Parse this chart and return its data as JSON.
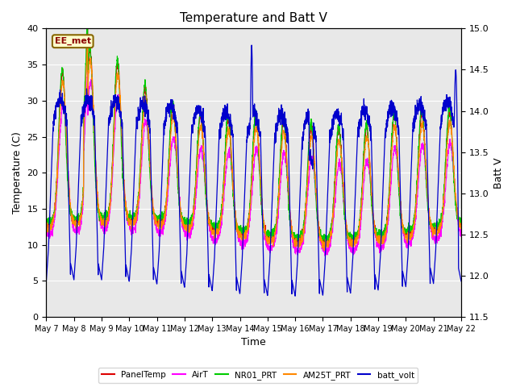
{
  "title": "Temperature and Batt V",
  "xlabel": "Time",
  "ylabel_left": "Temperature (C)",
  "ylabel_right": "Batt V",
  "annotation": "EE_met",
  "ylim_left": [
    0,
    40
  ],
  "ylim_right": [
    11.5,
    15.0
  ],
  "n_days": 15,
  "n_points": 3000,
  "background_color": "#ffffff",
  "plot_bg_color": "#e8e8e8",
  "series": {
    "PanelTemp": {
      "color": "#dd0000",
      "lw": 0.8
    },
    "AirT": {
      "color": "#ff00ff",
      "lw": 0.8
    },
    "NR01_PRT": {
      "color": "#00cc00",
      "lw": 0.8
    },
    "AM25T_PRT": {
      "color": "#ff8800",
      "lw": 0.8
    },
    "batt_volt": {
      "color": "#0000cc",
      "lw": 0.9
    }
  },
  "xtick_labels": [
    "May 7",
    "May 8",
    "May 9",
    "May 10",
    "May 11",
    "May 12",
    "May 13",
    "May 14",
    "May 15",
    "May 16",
    "May 17",
    "May 18",
    "May 19",
    "May 20",
    "May 21",
    "May 22"
  ],
  "yticks_left": [
    0,
    5,
    10,
    15,
    20,
    25,
    30,
    35,
    40
  ],
  "yticks_right": [
    11.5,
    12.0,
    12.5,
    13.0,
    13.5,
    14.0,
    14.5,
    15.0
  ],
  "figsize": [
    6.4,
    4.8
  ],
  "dpi": 100
}
